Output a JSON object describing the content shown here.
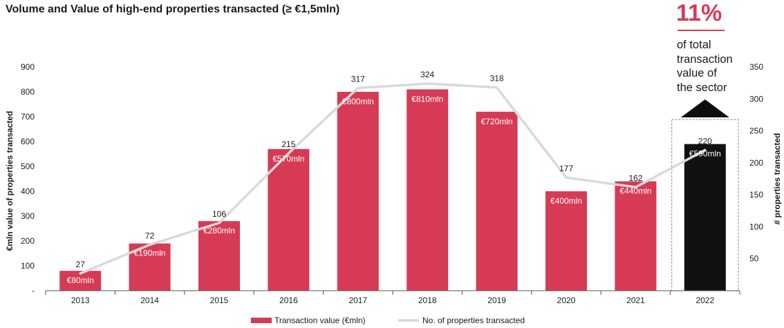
{
  "title": "Volume and Value of high-end properties transacted (≥ €1,5mln)",
  "callout": {
    "percent": "11%",
    "lines": [
      "of total",
      "transaction",
      "value of",
      "the sector"
    ]
  },
  "colors": {
    "accent": "#d73a55",
    "highlight": "#111111",
    "line": "#d9d9d9",
    "axis": "#555555",
    "text": "#1a1a1a"
  },
  "chart_data": {
    "type": "bar+line",
    "categories": [
      "2013",
      "2014",
      "2015",
      "2016",
      "2017",
      "2018",
      "2019",
      "2020",
      "2021",
      "2022"
    ],
    "series": [
      {
        "name": "Transaction value (€mln)",
        "type": "bar",
        "axis": "left",
        "values": [
          80,
          190,
          280,
          570,
          800,
          810,
          720,
          400,
          440,
          590
        ],
        "labels": [
          "€80mln",
          "€190mln",
          "€280mln",
          "€570mln",
          "€800mln",
          "€810mln",
          "€720mln",
          "€400mln",
          "€440mln",
          "€590mln"
        ]
      },
      {
        "name": "No. of properties transacted",
        "type": "line",
        "axis": "right",
        "values": [
          27,
          72,
          106,
          215,
          317,
          324,
          318,
          177,
          162,
          220
        ],
        "labels": [
          "27",
          "72",
          "106",
          "215",
          "317",
          "324",
          "318",
          "177",
          "162",
          "220"
        ]
      }
    ],
    "highlight_category": "2022",
    "ylabel_left": "€mln value of properties transacted",
    "ylabel_right": "# properties transacted",
    "yticks_left": [
      "-",
      "100",
      "200",
      "300",
      "400",
      "500",
      "600",
      "700",
      "800",
      "900"
    ],
    "yticks_right": [
      "50",
      "100",
      "150",
      "200",
      "250",
      "300",
      "350"
    ],
    "ylim_left": [
      0,
      900
    ],
    "ylim_right": [
      0,
      350
    ],
    "grid": false,
    "legend_position": "bottom-center"
  }
}
